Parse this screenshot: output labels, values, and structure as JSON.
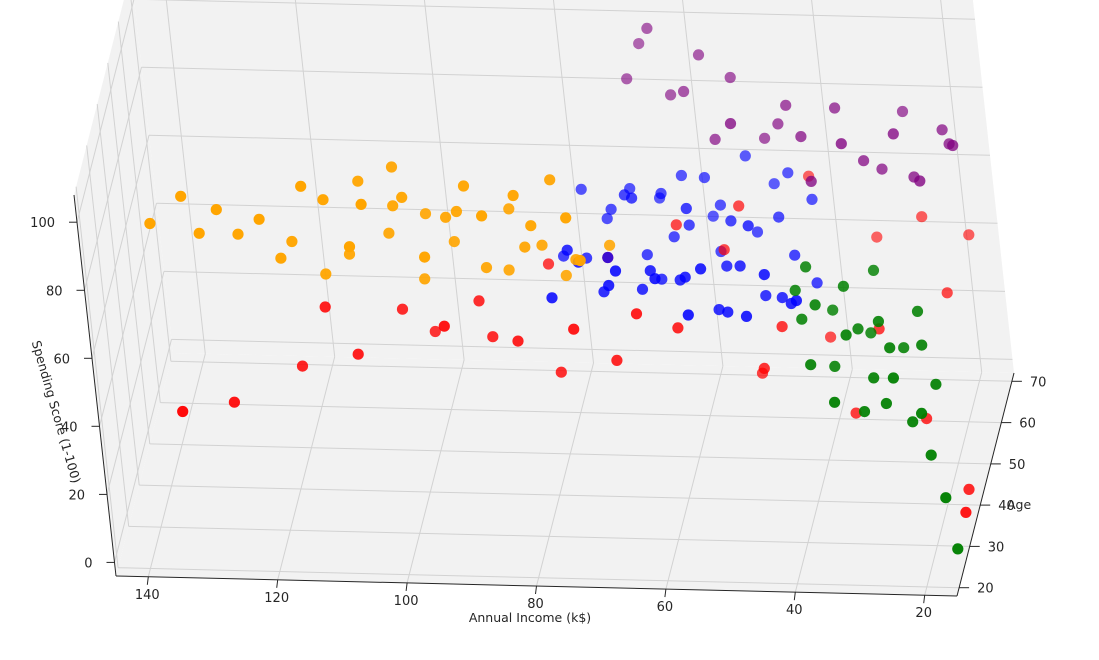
{
  "chart_data": {
    "type": "scatter",
    "title": "",
    "xlabel": "Annual Income (k$)",
    "ylabel": "Spending Score (1-100)",
    "zlabel": "Age",
    "x_ticks": [
      "20",
      "40",
      "60",
      "80",
      "100",
      "120",
      "140"
    ],
    "y_ticks": [
      "0",
      "20",
      "40",
      "60",
      "80",
      "100"
    ],
    "z_ticks": [
      "20",
      "30",
      "40",
      "50",
      "60",
      "70"
    ],
    "grid": true,
    "legend": "none",
    "colors": {
      "pane": "#f2f2f2",
      "grid": "#d2d2d2",
      "text": "#262626",
      "red": "#ff0000",
      "orange": "#ffa500",
      "blue": "#0000ff",
      "purple": "#800080",
      "green": "#008000"
    },
    "series": [
      {
        "color": "#ff0000",
        "points": [
          [
            15,
            6,
            30
          ],
          [
            16,
            3,
            38
          ],
          [
            20,
            40,
            55
          ],
          [
            23,
            15,
            45
          ],
          [
            30,
            35,
            50
          ],
          [
            35,
            10,
            50
          ],
          [
            40,
            20,
            60
          ],
          [
            45,
            35,
            50
          ],
          [
            48,
            25,
            48
          ],
          [
            50,
            15,
            55
          ],
          [
            55,
            45,
            60
          ],
          [
            60,
            40,
            45
          ],
          [
            65,
            50,
            40
          ],
          [
            70,
            30,
            45
          ],
          [
            75,
            45,
            40
          ],
          [
            80,
            20,
            50
          ],
          [
            85,
            35,
            45
          ],
          [
            90,
            30,
            50
          ],
          [
            95,
            45,
            40
          ],
          [
            100,
            25,
            55
          ],
          [
            110,
            30,
            45
          ],
          [
            120,
            20,
            50
          ],
          [
            130,
            15,
            45
          ],
          [
            137,
            18,
            40
          ],
          [
            18,
            45,
            65
          ],
          [
            25,
            50,
            65
          ],
          [
            33,
            40,
            68
          ],
          [
            43,
            55,
            70
          ],
          [
            52,
            58,
            60
          ],
          [
            62,
            52,
            60
          ],
          [
            72,
            48,
            55
          ],
          [
            82,
            42,
            58
          ],
          [
            92,
            38,
            52
          ],
          [
            104,
            35,
            52
          ],
          [
            115,
            40,
            48
          ]
        ]
      },
      {
        "color": "#ffa500",
        "points": [
          [
            70,
            80,
            28
          ],
          [
            72,
            90,
            30
          ],
          [
            75,
            95,
            35
          ],
          [
            78,
            85,
            32
          ],
          [
            80,
            75,
            35
          ],
          [
            85,
            90,
            30
          ],
          [
            88,
            95,
            33
          ],
          [
            90,
            85,
            35
          ],
          [
            95,
            75,
            32
          ],
          [
            98,
            90,
            34
          ],
          [
            100,
            85,
            36
          ],
          [
            103,
            95,
            28
          ],
          [
            106,
            80,
            30
          ],
          [
            110,
            90,
            33
          ],
          [
            113,
            95,
            32
          ],
          [
            116,
            75,
            35
          ],
          [
            120,
            85,
            32
          ],
          [
            126,
            90,
            30
          ],
          [
            130,
            78,
            34
          ],
          [
            137,
            83,
            32
          ],
          [
            68,
            70,
            40
          ],
          [
            73,
            68,
            38
          ],
          [
            78,
            72,
            38
          ],
          [
            83,
            80,
            40
          ],
          [
            87,
            65,
            38
          ],
          [
            92,
            70,
            40
          ],
          [
            97,
            60,
            39
          ],
          [
            102,
            72,
            40
          ],
          [
            108,
            68,
            38
          ],
          [
            112,
            62,
            38
          ],
          [
            100,
            94,
            38
          ],
          [
            96,
            78,
            40
          ],
          [
            84,
            62,
            40
          ],
          [
            75,
            62,
            39
          ],
          [
            92,
            82,
            36
          ],
          [
            105,
            92,
            36
          ],
          [
            118,
            70,
            35
          ],
          [
            124,
            78,
            34
          ],
          [
            132,
            90,
            33
          ],
          [
            80,
            95,
            31
          ]
        ]
      },
      {
        "color": "#0000ff",
        "points": [
          [
            40,
            55,
            40
          ],
          [
            42,
            48,
            45
          ],
          [
            45,
            60,
            42
          ],
          [
            48,
            50,
            40
          ],
          [
            50,
            55,
            48
          ],
          [
            52,
            45,
            45
          ],
          [
            55,
            60,
            43
          ],
          [
            57,
            50,
            40
          ],
          [
            58,
            55,
            45
          ],
          [
            60,
            48,
            50
          ],
          [
            62,
            58,
            42
          ],
          [
            64,
            53,
            48
          ],
          [
            66,
            45,
            50
          ],
          [
            68,
            60,
            42
          ],
          [
            70,
            52,
            45
          ],
          [
            72,
            48,
            55
          ],
          [
            75,
            55,
            48
          ],
          [
            40,
            42,
            55
          ],
          [
            43,
            50,
            55
          ],
          [
            46,
            55,
            60
          ],
          [
            50,
            48,
            62
          ],
          [
            53,
            56,
            58
          ],
          [
            56,
            42,
            62
          ],
          [
            58,
            60,
            65
          ],
          [
            60,
            52,
            60
          ],
          [
            63,
            46,
            62
          ],
          [
            65,
            55,
            65
          ],
          [
            67,
            43,
            60
          ],
          [
            70,
            58,
            62
          ],
          [
            73,
            50,
            65
          ],
          [
            76,
            44,
            58
          ],
          [
            45,
            62,
            65
          ],
          [
            48,
            55,
            68
          ],
          [
            52,
            63,
            68
          ],
          [
            56,
            52,
            65
          ],
          [
            58,
            45,
            68
          ],
          [
            62,
            58,
            67
          ],
          [
            66,
            50,
            68
          ],
          [
            70,
            55,
            66
          ],
          [
            74,
            46,
            66
          ],
          [
            78,
            52,
            68
          ],
          [
            80,
            42,
            60
          ],
          [
            44,
            46,
            48
          ],
          [
            49,
            62,
            52
          ],
          [
            54,
            42,
            48
          ],
          [
            59,
            63,
            55
          ],
          [
            64,
            42,
            55
          ],
          [
            68,
            62,
            58
          ],
          [
            72,
            44,
            50
          ],
          [
            77,
            56,
            50
          ],
          [
            79,
            48,
            45
          ],
          [
            41,
            58,
            62
          ],
          [
            47,
            44,
            50
          ],
          [
            53,
            50,
            52
          ]
        ]
      },
      {
        "color": "#800080",
        "points": [
          [
            15,
            92,
            48
          ],
          [
            16,
            90,
            50
          ],
          [
            18,
            88,
            55
          ],
          [
            20,
            85,
            45
          ],
          [
            22,
            80,
            50
          ],
          [
            24,
            95,
            48
          ],
          [
            25,
            87,
            60
          ],
          [
            28,
            76,
            55
          ],
          [
            30,
            82,
            52
          ],
          [
            32,
            93,
            47
          ],
          [
            35,
            90,
            58
          ],
          [
            38,
            78,
            50
          ],
          [
            40,
            85,
            55
          ],
          [
            43,
            88,
            60
          ],
          [
            45,
            80,
            62
          ],
          [
            48,
            72,
            65
          ],
          [
            50,
            92,
            52
          ],
          [
            53,
            86,
            68
          ],
          [
            55,
            75,
            62
          ],
          [
            58,
            90,
            70
          ],
          [
            60,
            84,
            66
          ],
          [
            63,
            78,
            70
          ],
          [
            66,
            95,
            72
          ],
          [
            68,
            88,
            74
          ],
          [
            70,
            80,
            72
          ]
        ]
      },
      {
        "color": "#008000",
        "points": [
          [
            15,
            5,
            22
          ],
          [
            16,
            20,
            22
          ],
          [
            18,
            30,
            24
          ],
          [
            19,
            41,
            25
          ],
          [
            21,
            36,
            27
          ],
          [
            23,
            50,
            26
          ],
          [
            25,
            40,
            28
          ],
          [
            27,
            45,
            30
          ],
          [
            29,
            35,
            30
          ],
          [
            31,
            55,
            32
          ],
          [
            34,
            42,
            35
          ],
          [
            36,
            60,
            35
          ],
          [
            39,
            52,
            38
          ],
          [
            19,
            55,
            30
          ],
          [
            23,
            48,
            35
          ],
          [
            26,
            58,
            33
          ],
          [
            29,
            46,
            40
          ],
          [
            32,
            62,
            38
          ],
          [
            35,
            50,
            42
          ],
          [
            38,
            65,
            40
          ],
          [
            17,
            46,
            28
          ],
          [
            24,
            54,
            30
          ],
          [
            30,
            52,
            36
          ],
          [
            33,
            40,
            28
          ],
          [
            37,
            46,
            32
          ],
          [
            28,
            62,
            42
          ],
          [
            20,
            60,
            34
          ],
          [
            40,
            58,
            40
          ]
        ]
      }
    ]
  }
}
